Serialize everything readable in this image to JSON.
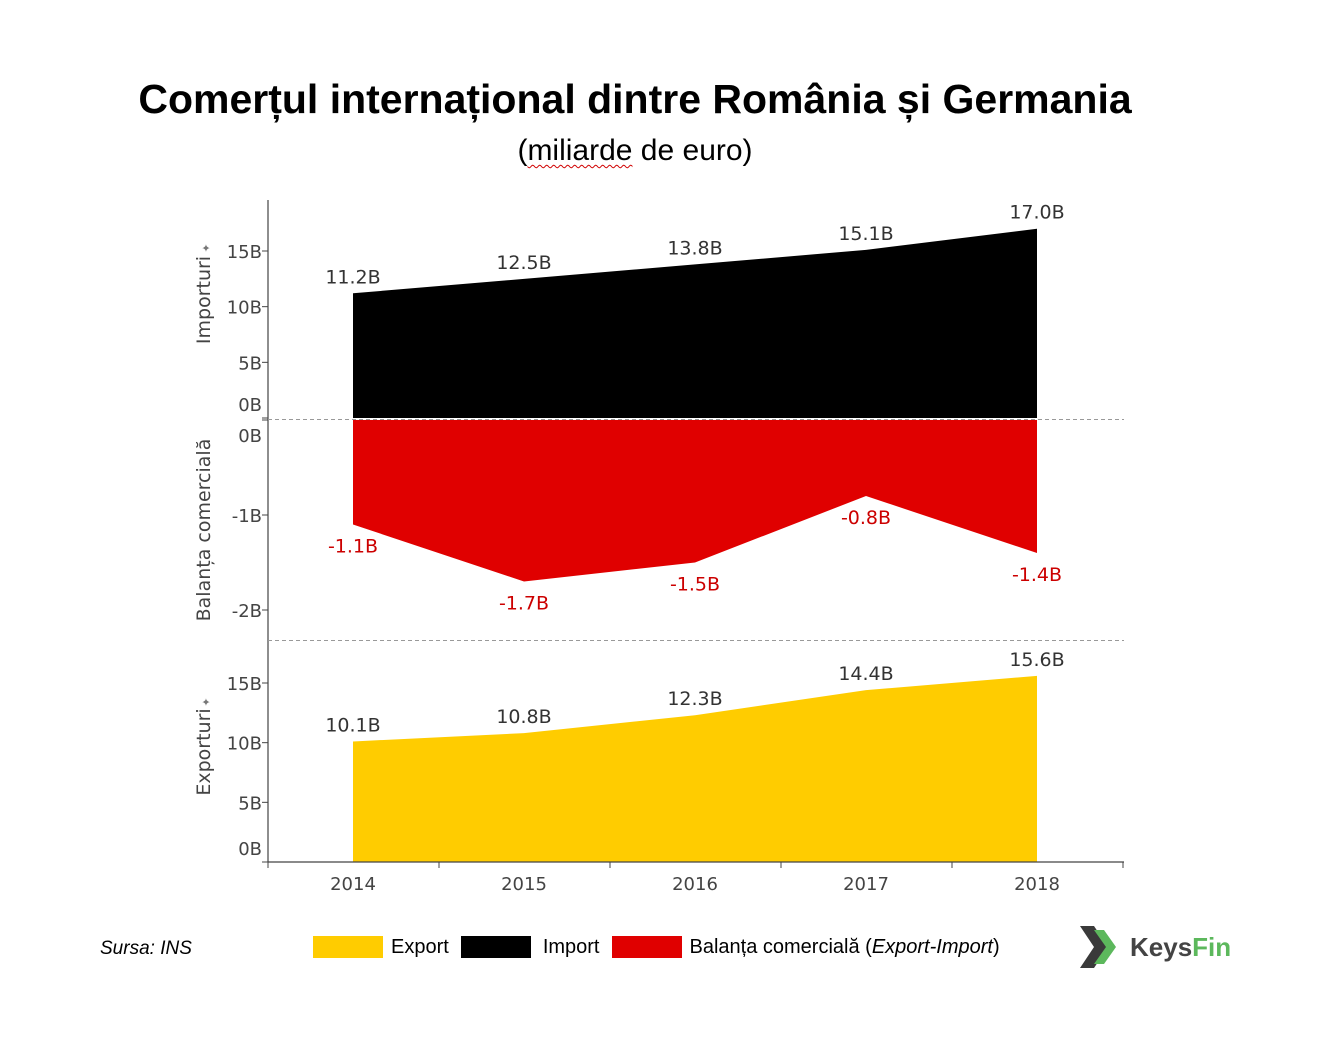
{
  "title": "Comerțul internațional dintre România și Germania",
  "subtitle_pre": "(",
  "subtitle_word": "miliarde",
  "subtitle_post": " de euro)",
  "source": "Sursa: INS",
  "legend": [
    {
      "label": "Export",
      "color": "#FFCC00"
    },
    {
      "label": "Import",
      "color": "#000000"
    },
    {
      "label": "Balanța comercială (",
      "label_em": "Export-Import",
      "label_end": ")",
      "color": "#E00000"
    }
  ],
  "logo": {
    "text_a": "Keys",
    "text_b": "Fin"
  },
  "chart_data": [
    {
      "type": "area",
      "ylabel": "Importuri",
      "x": [
        "2014",
        "2015",
        "2016",
        "2017",
        "2018"
      ],
      "values": [
        11.2,
        12.5,
        13.8,
        15.1,
        17.0
      ],
      "data_labels": [
        "11.2B",
        "12.5B",
        "13.8B",
        "15.1B",
        "17.0B"
      ],
      "yticks": [
        "0B",
        "5B",
        "10B",
        "15B"
      ],
      "ylim": [
        0,
        19
      ],
      "color": "#000000"
    },
    {
      "type": "area",
      "ylabel": "Balanța comercială",
      "x": [
        "2014",
        "2015",
        "2016",
        "2017",
        "2018"
      ],
      "values": [
        -1.1,
        -1.7,
        -1.5,
        -0.8,
        -1.4
      ],
      "data_labels": [
        "-1.1B",
        "-1.7B",
        "-1.5B",
        "-0.8B",
        "-1.4B"
      ],
      "yticks": [
        "0B",
        "-1B",
        "-2B"
      ],
      "ylim": [
        -2.3,
        0
      ],
      "color": "#E00000",
      "label_color": "#CC0000"
    },
    {
      "type": "area",
      "ylabel": "Exporturi",
      "x": [
        "2014",
        "2015",
        "2016",
        "2017",
        "2018"
      ],
      "values": [
        10.1,
        10.8,
        12.3,
        14.4,
        15.6
      ],
      "data_labels": [
        "10.1B",
        "10.8B",
        "12.3B",
        "14.4B",
        "15.6B"
      ],
      "yticks": [
        "0B",
        "5B",
        "10B",
        "15B"
      ],
      "ylim": [
        0,
        18
      ],
      "color": "#FFCC00"
    }
  ]
}
